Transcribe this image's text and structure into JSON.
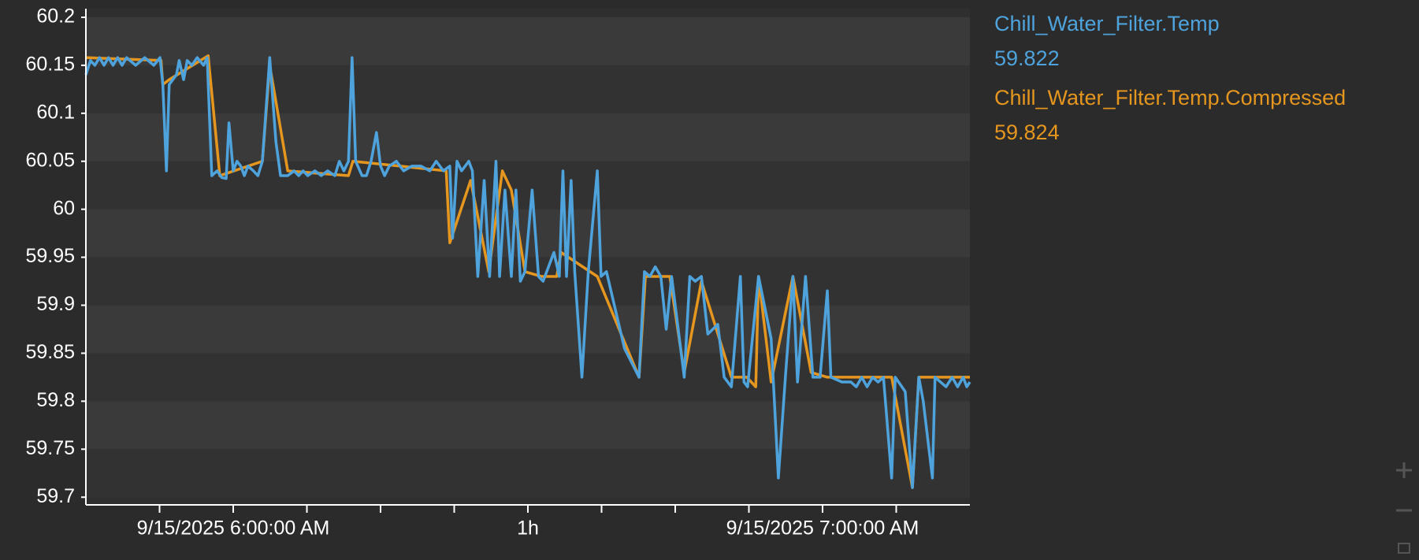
{
  "chart_data": {
    "type": "line",
    "xlim": [
      "2025-09-15T05:45:00",
      "2025-09-15T07:15:00"
    ],
    "xticks": [
      {
        "value": "2025-09-15T05:52:30",
        "label": null
      },
      {
        "value": "2025-09-15T06:00:00",
        "label": "9/15/2025 6:00:00 AM"
      },
      {
        "value": "2025-09-15T06:07:30",
        "label": null
      },
      {
        "value": "2025-09-15T06:15:00",
        "label": null
      },
      {
        "value": "2025-09-15T06:22:30",
        "label": null
      },
      {
        "value": "2025-09-15T06:30:00",
        "label": "1h"
      },
      {
        "value": "2025-09-15T06:37:30",
        "label": null
      },
      {
        "value": "2025-09-15T06:45:00",
        "label": null
      },
      {
        "value": "2025-09-15T06:52:30",
        "label": null
      },
      {
        "value": "2025-09-15T07:00:00",
        "label": "9/15/2025 7:00:00 AM"
      },
      {
        "value": "2025-09-15T07:07:30",
        "label": null
      }
    ],
    "ylim": [
      59.692,
      60.209
    ],
    "yticks": [
      59.7,
      59.75,
      59.8,
      59.85,
      59.9,
      59.95,
      60,
      60.05,
      60.1,
      60.15,
      60.2
    ],
    "grid": "bands",
    "legend": "right",
    "series": [
      {
        "name": "Chill_Water_Filter.Temp",
        "color": "#4ea3dd",
        "last_value": 59.822,
        "x": [
          "2025-09-15T05:45:00",
          "2025-09-15T05:45:28",
          "2025-09-15T05:45:55",
          "2025-09-15T05:46:23",
          "2025-09-15T05:46:51",
          "2025-09-15T05:47:18",
          "2025-09-15T05:47:46",
          "2025-09-15T05:48:14",
          "2025-09-15T05:48:41",
          "2025-09-15T05:49:09",
          "2025-09-15T05:50:04",
          "2025-09-15T05:50:59",
          "2025-09-15T05:51:55",
          "2025-09-15T05:52:33",
          "2025-09-15T05:52:50",
          "2025-09-15T05:53:12",
          "2025-09-15T05:53:29",
          "2025-09-15T05:54:13",
          "2025-09-15T05:54:30",
          "2025-09-15T05:54:57",
          "2025-09-15T05:55:19",
          "2025-09-15T05:55:47",
          "2025-09-15T05:56:20",
          "2025-09-15T05:56:59",
          "2025-09-15T05:57:21",
          "2025-09-15T05:57:49",
          "2025-09-15T05:58:22",
          "2025-09-15T05:58:50",
          "2025-09-15T05:59:17",
          "2025-09-15T05:59:34",
          "2025-09-15T06:00:00",
          "2025-09-15T06:00:23",
          "2025-09-15T06:00:46",
          "2025-09-15T06:01:08",
          "2025-09-15T06:01:30",
          "2025-09-15T06:02:03",
          "2025-09-15T06:02:31",
          "2025-09-15T06:02:58",
          "2025-09-15T06:03:43",
          "2025-09-15T06:04:21",
          "2025-09-15T06:04:49",
          "2025-09-15T06:05:33",
          "2025-09-15T06:06:12",
          "2025-09-15T06:06:40",
          "2025-09-15T06:07:07",
          "2025-09-15T06:07:35",
          "2025-09-15T06:08:19",
          "2025-09-15T06:08:58",
          "2025-09-15T06:09:37",
          "2025-09-15T06:10:21",
          "2025-09-15T06:10:48",
          "2025-09-15T06:11:16",
          "2025-09-15T06:11:44",
          "2025-09-15T06:12:06",
          "2025-09-15T06:12:28",
          "2025-09-15T06:13:07",
          "2025-09-15T06:13:34",
          "2025-09-15T06:14:02",
          "2025-09-15T06:14:35",
          "2025-09-15T06:15:00",
          "2025-09-15T06:15:25",
          "2025-09-15T06:15:53",
          "2025-09-15T06:16:37",
          "2025-09-15T06:17:21",
          "2025-09-15T06:18:11",
          "2025-09-15T06:19:06",
          "2025-09-15T06:20:01",
          "2025-09-15T06:20:40",
          "2025-09-15T06:21:24",
          "2025-09-15T06:22:03",
          "2025-09-15T06:22:20",
          "2025-09-15T06:22:47",
          "2025-09-15T06:23:15",
          "2025-09-15T06:23:59",
          "2025-09-15T06:24:21",
          "2025-09-15T06:24:54",
          "2025-09-15T06:25:33",
          "2025-09-15T06:26:06",
          "2025-09-15T06:26:45",
          "2025-09-15T06:27:07",
          "2025-09-15T06:27:40",
          "2025-09-15T06:28:19",
          "2025-09-15T06:28:47",
          "2025-09-15T06:29:14",
          "2025-09-15T06:29:42",
          "2025-09-15T06:30:26",
          "2025-09-15T06:31:05",
          "2025-09-15T06:31:33",
          "2025-09-15T06:32:06",
          "2025-09-15T06:32:39",
          "2025-09-15T06:33:12",
          "2025-09-15T06:33:34",
          "2025-09-15T06:33:56",
          "2025-09-15T06:34:24",
          "2025-09-15T06:34:46",
          "2025-09-15T06:35:30",
          "2025-09-15T06:36:09",
          "2025-09-15T06:37:04",
          "2025-09-15T06:37:27",
          "2025-09-15T06:38:00",
          "2025-09-15T06:39:50",
          "2025-09-15T06:41:19",
          "2025-09-15T06:41:52",
          "2025-09-15T06:42:25",
          "2025-09-15T06:42:58",
          "2025-09-15T06:43:32",
          "2025-09-15T06:44:05",
          "2025-09-15T06:44:38",
          "2025-09-15T06:45:55",
          "2025-09-15T06:46:29",
          "2025-09-15T06:47:02",
          "2025-09-15T06:47:40",
          "2025-09-15T06:48:19",
          "2025-09-15T06:49:20",
          "2025-09-15T06:49:59",
          "2025-09-15T06:50:43",
          "2025-09-15T06:51:38",
          "2025-09-15T06:52:00",
          "2025-09-15T06:52:22",
          "2025-09-15T06:53:29",
          "2025-09-15T06:54:46",
          "2025-09-15T06:55:30",
          "2025-09-15T06:56:15",
          "2025-09-15T06:56:59",
          "2025-09-15T06:57:27",
          "2025-09-15T06:58:16",
          "2025-09-15T06:59:01",
          "2025-09-15T06:59:45",
          "2025-09-15T07:00:29",
          "2025-09-15T07:00:51",
          "2025-09-15T07:01:58",
          "2025-09-15T07:02:53",
          "2025-09-15T07:03:26",
          "2025-09-15T07:03:59",
          "2025-09-15T07:04:32",
          "2025-09-15T07:05:06",
          "2025-09-15T07:05:39",
          "2025-09-15T07:06:12",
          "2025-09-15T07:07:02",
          "2025-09-15T07:07:24",
          "2025-09-15T07:08:25",
          "2025-09-15T07:09:09",
          "2025-09-15T07:09:48",
          "2025-09-15T07:10:15",
          "2025-09-15T07:11:11",
          "2025-09-15T07:11:27",
          "2025-09-15T07:12:34",
          "2025-09-15T07:13:12",
          "2025-09-15T07:13:45",
          "2025-09-15T07:14:19",
          "2025-09-15T07:14:41",
          "2025-09-15T07:15:00"
        ],
        "values": [
          60.14,
          60.155,
          60.15,
          60.158,
          60.15,
          60.158,
          60.15,
          60.158,
          60.15,
          60.158,
          60.15,
          60.158,
          60.15,
          60.158,
          60.13,
          60.04,
          60.13,
          60.14,
          60.155,
          60.135,
          60.155,
          60.15,
          60.158,
          60.15,
          60.158,
          60.035,
          60.04,
          60.033,
          60.032,
          60.09,
          60.04,
          60.05,
          60.045,
          60.035,
          60.045,
          60.04,
          60.035,
          60.05,
          60.158,
          60.07,
          60.035,
          60.035,
          60.04,
          60.035,
          60.04,
          60.035,
          60.04,
          60.035,
          60.04,
          60.035,
          60.05,
          60.04,
          60.05,
          60.158,
          60.05,
          60.035,
          60.035,
          60.05,
          60.08,
          60.045,
          60.035,
          60.045,
          60.05,
          60.04,
          60.045,
          60.045,
          60.04,
          60.05,
          60.04,
          60.045,
          59.97,
          60.05,
          60.04,
          60.05,
          60.04,
          59.93,
          60.03,
          59.93,
          60.05,
          59.93,
          60.02,
          59.93,
          60.02,
          59.925,
          59.935,
          60.02,
          59.93,
          59.925,
          59.94,
          59.955,
          59.93,
          60.04,
          59.93,
          60.03,
          59.935,
          59.825,
          59.935,
          60.04,
          59.93,
          59.935,
          59.855,
          59.825,
          59.935,
          59.93,
          59.94,
          59.93,
          59.875,
          59.93,
          59.825,
          59.93,
          59.925,
          59.93,
          59.87,
          59.88,
          59.825,
          59.815,
          59.93,
          59.82,
          59.815,
          59.93,
          59.865,
          59.72,
          59.83,
          59.93,
          59.82,
          59.93,
          59.825,
          59.825,
          59.915,
          59.825,
          59.82,
          59.82,
          59.815,
          59.825,
          59.815,
          59.825,
          59.82,
          59.825,
          59.72,
          59.825,
          59.81,
          59.71,
          59.825,
          59.8,
          59.72,
          59.825,
          59.815,
          59.825,
          59.815,
          59.825,
          59.815,
          59.82
        ]
      },
      {
        "name": "Chill_Water_Filter.Temp.Compressed",
        "color": "#e5961e",
        "last_value": 59.824,
        "x": [
          "2025-09-15T05:45:00",
          "2025-09-15T05:52:39",
          "2025-09-15T05:52:50",
          "2025-09-15T05:53:29",
          "2025-09-15T05:57:27",
          "2025-09-15T05:58:38",
          "2025-09-15T06:02:58",
          "2025-09-15T06:03:43",
          "2025-09-15T06:05:33",
          "2025-09-15T06:11:44",
          "2025-09-15T06:12:11",
          "2025-09-15T06:21:41",
          "2025-09-15T06:22:03",
          "2025-09-15T06:24:10",
          "2025-09-15T06:26:01",
          "2025-09-15T06:27:24",
          "2025-09-15T06:28:19",
          "2025-09-15T06:29:42",
          "2025-09-15T06:31:22",
          "2025-09-15T06:32:56",
          "2025-09-15T06:33:23",
          "2025-09-15T06:37:04",
          "2025-09-15T06:41:19",
          "2025-09-15T06:41:58",
          "2025-09-15T06:44:27",
          "2025-09-15T06:45:55",
          "2025-09-15T06:47:40",
          "2025-09-15T06:50:43",
          "2025-09-15T06:52:17",
          "2025-09-15T06:53:12",
          "2025-09-15T06:53:29",
          "2025-09-15T06:54:46",
          "2025-09-15T06:56:59",
          "2025-09-15T06:58:50",
          "2025-09-15T07:00:29",
          "2025-09-15T07:07:02",
          "2025-09-15T07:09:09",
          "2025-09-15T07:09:48",
          "2025-09-15T07:15:00"
        ],
        "values": [
          60.158,
          60.155,
          60.13,
          60.135,
          60.16,
          60.035,
          60.05,
          60.15,
          60.04,
          60.035,
          60.05,
          60.04,
          59.965,
          60.03,
          59.935,
          60.04,
          60.02,
          59.935,
          59.93,
          59.93,
          59.955,
          59.93,
          59.825,
          59.93,
          59.93,
          59.83,
          59.925,
          59.825,
          59.825,
          59.815,
          59.93,
          59.82,
          59.93,
          59.83,
          59.825,
          59.825,
          59.71,
          59.825,
          59.825
        ]
      }
    ]
  }
}
